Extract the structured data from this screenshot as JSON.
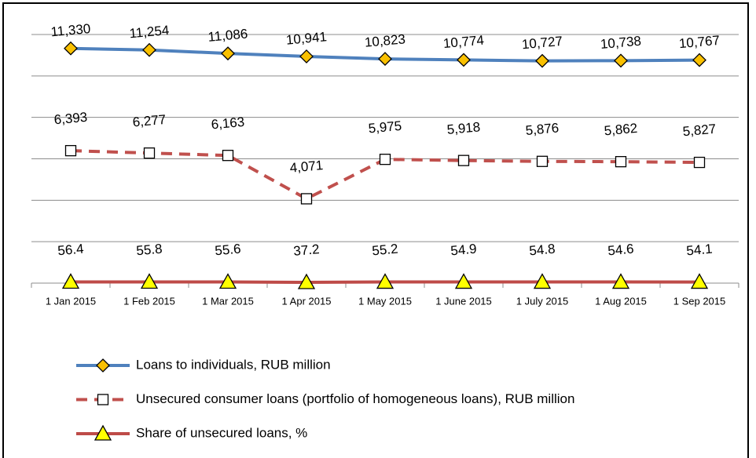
{
  "chart_data": {
    "type": "line",
    "categories": [
      "1 Jan 2015",
      "1 Feb 2015",
      "1 Mar 2015",
      "1 Apr 2015",
      "1 May 2015",
      "1 June 2015",
      "1 July 2015",
      "1 Aug 2015",
      "1 Sep 2015"
    ],
    "ylim": [
      0,
      12000
    ],
    "yticks": [
      0,
      2000,
      4000,
      6000,
      8000,
      10000,
      12000
    ],
    "grid": true,
    "ytick_labels": false,
    "legend": "bottom",
    "series": [
      {
        "name": "Loans to individuals, RUB million",
        "color": "#4f81bd",
        "marker": "diamond",
        "marker_color": "#f9c000",
        "dashed": false,
        "values": [
          11330,
          11254,
          11086,
          10941,
          10823,
          10774,
          10727,
          10738,
          10767
        ],
        "value_labels": [
          "11,330",
          "11,254",
          "11,086",
          "10,941",
          "10,823",
          "10,774",
          "10,727",
          "10,738",
          "10,767"
        ]
      },
      {
        "name": "Unsecured consumer loans (portfolio of homogeneous loans), RUB million",
        "color": "#c0504d",
        "marker": "square",
        "marker_color": "#ffffff",
        "dashed": true,
        "values": [
          6393,
          6277,
          6163,
          4071,
          5975,
          5918,
          5876,
          5862,
          5827
        ],
        "value_labels": [
          "6,393",
          "6,277",
          "6,163",
          "4,071",
          "5,975",
          "5,918",
          "5,876",
          "5,862",
          "5,827"
        ]
      },
      {
        "name": "Share of unsecured loans, %",
        "color": "#be4b48",
        "marker": "triangle",
        "marker_color": "#ffff00",
        "dashed": false,
        "values": [
          56.4,
          55.8,
          55.6,
          37.2,
          55.2,
          54.9,
          54.8,
          54.6,
          54.1
        ]
      }
    ]
  }
}
